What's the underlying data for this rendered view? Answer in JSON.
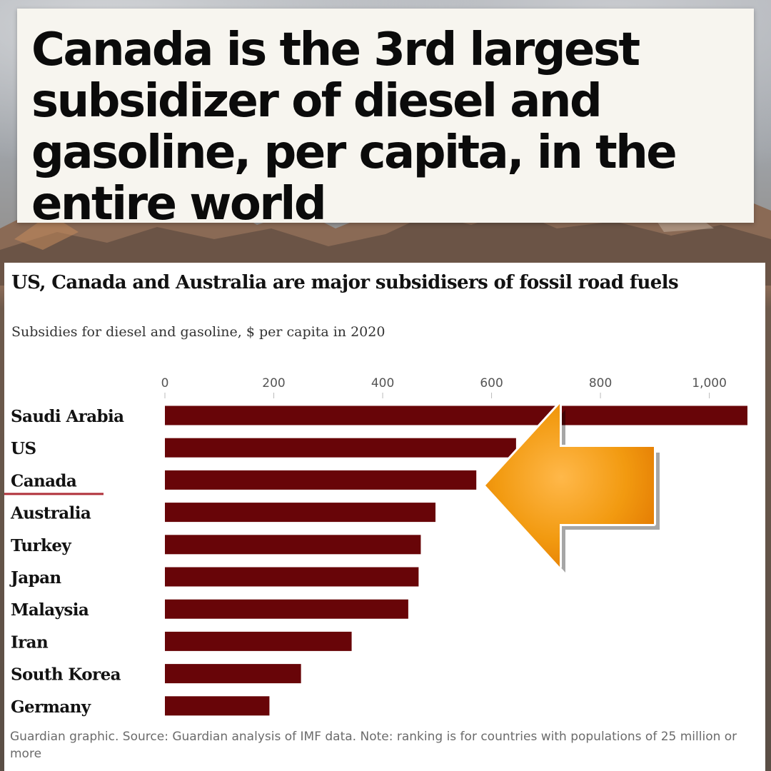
{
  "headline": "Canada is the 3rd largest subsidizer of diesel and gasoline, per capita, in the entire world",
  "chart_data": {
    "type": "bar",
    "orientation": "horizontal",
    "title": "US, Canada and Australia are major subsidisers of fossil road fuels",
    "subtitle": "Subsidies for diesel and gasoline, $ per capita in 2020",
    "categories": [
      "Saudi Arabia",
      "US",
      "Canada",
      "Australia",
      "Turkey",
      "Japan",
      "Malaysia",
      "Iran",
      "South Korea",
      "Germany"
    ],
    "values": [
      1070,
      645,
      572,
      497,
      470,
      466,
      447,
      343,
      250,
      192
    ],
    "xlim": [
      0,
      1070
    ],
    "xticks": [
      0,
      200,
      400,
      600,
      800,
      1000
    ],
    "xtick_labels": [
      "0",
      "200",
      "400",
      "600",
      "800",
      "1,000"
    ],
    "highlight": "Canada",
    "bar_color": "#680508",
    "highlight_underline_color": "#b0303a",
    "source": "Guardian graphic. Source: Guardian analysis of IMF data. Note: ranking is for countries with populations of 25 million or more"
  },
  "colors": {
    "arrow": "#f29a10",
    "headline_bg": "#f7f5ef"
  }
}
